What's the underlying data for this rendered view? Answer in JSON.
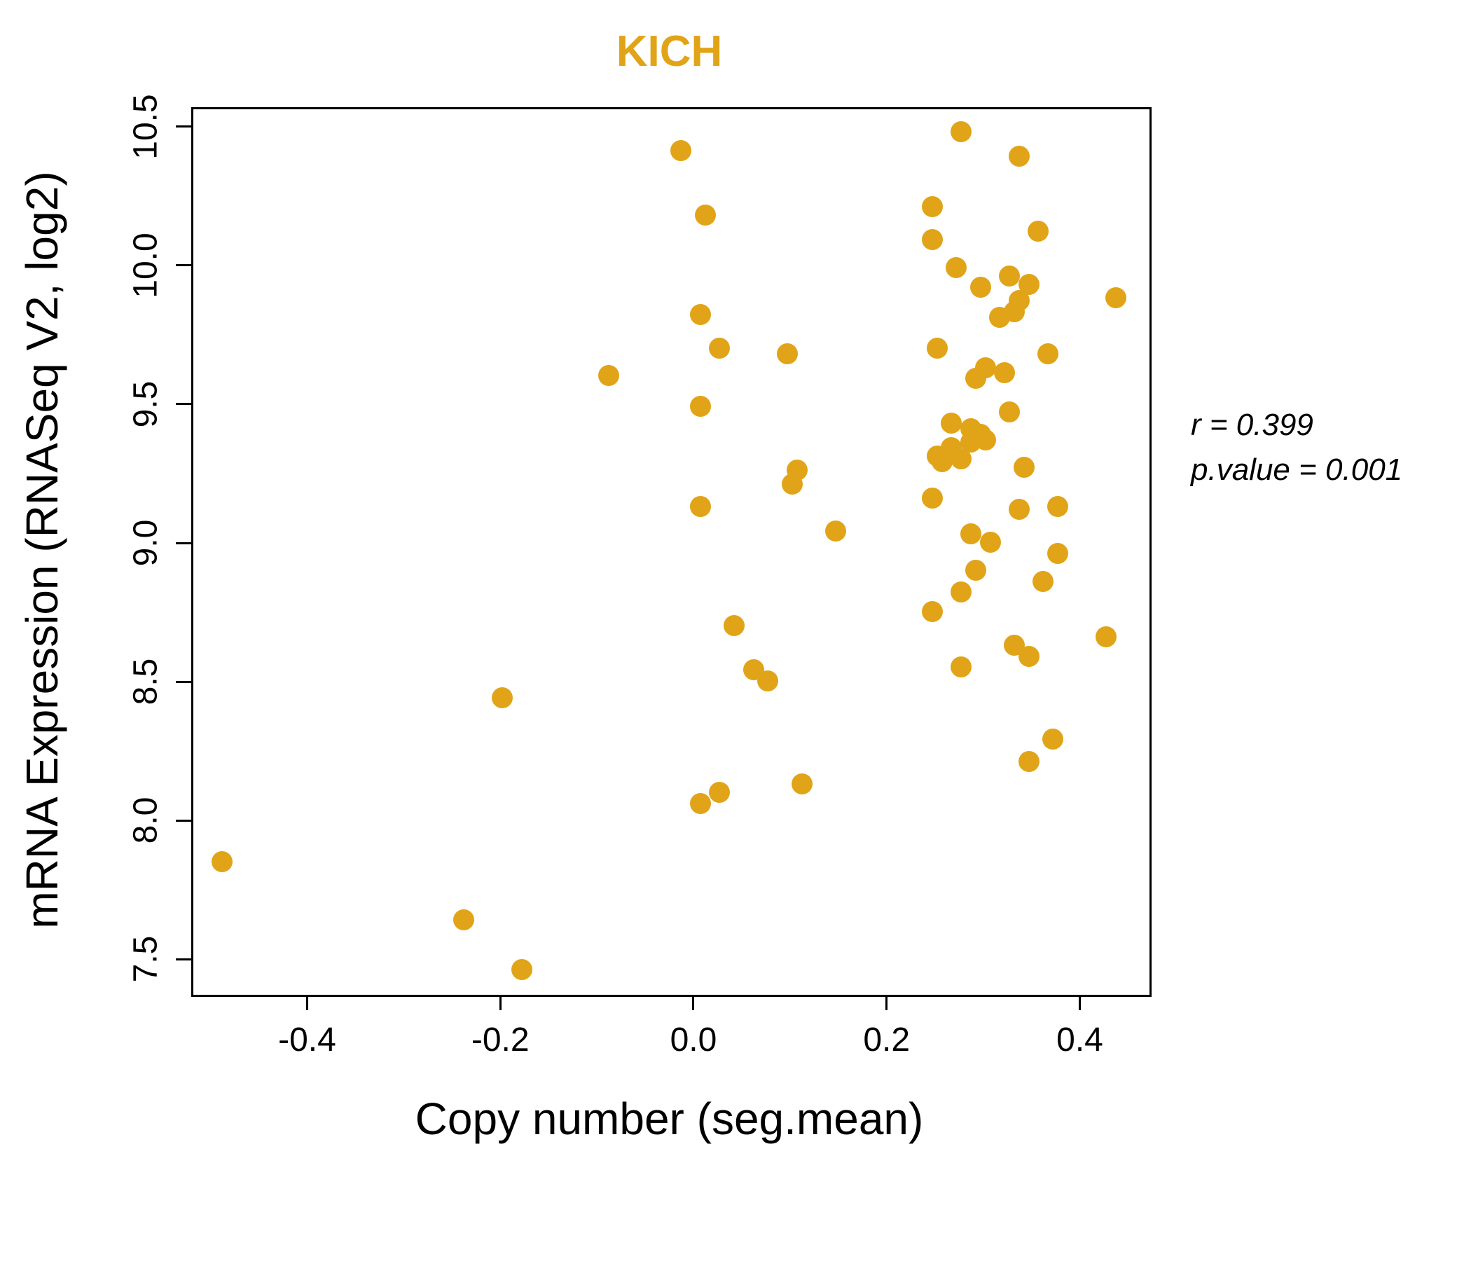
{
  "accent_color": "#E1A418",
  "title": "KICH",
  "annotation": {
    "line1": "r = 0.399",
    "line2": "p.value = 0.001"
  },
  "chart_data": {
    "type": "scatter",
    "title": "KICH",
    "xlabel": "Copy number (seg.mean)",
    "ylabel": "mRNA Expression (RNASeq V2, log2)",
    "xlim": [
      -0.52,
      0.47
    ],
    "ylim": [
      7.38,
      10.57
    ],
    "x_ticks": [
      -0.4,
      -0.2,
      0.0,
      0.2,
      0.4
    ],
    "y_ticks": [
      7.5,
      8.0,
      8.5,
      9.0,
      9.5,
      10.0,
      10.5
    ],
    "grid": false,
    "legend": "none",
    "point_color": "#E1A418",
    "r": 0.399,
    "p_value": 0.001,
    "points": [
      [
        -0.49,
        7.86
      ],
      [
        -0.24,
        7.65
      ],
      [
        -0.18,
        7.47
      ],
      [
        -0.2,
        8.45
      ],
      [
        -0.09,
        9.61
      ],
      [
        -0.015,
        10.42
      ],
      [
        0.01,
        10.19
      ],
      [
        0.005,
        9.83
      ],
      [
        0.025,
        9.71
      ],
      [
        0.005,
        9.5
      ],
      [
        0.005,
        9.14
      ],
      [
        0.095,
        9.69
      ],
      [
        0.105,
        9.27
      ],
      [
        0.1,
        9.22
      ],
      [
        0.145,
        9.05
      ],
      [
        0.04,
        8.71
      ],
      [
        0.06,
        8.55
      ],
      [
        0.075,
        8.51
      ],
      [
        0.005,
        8.07
      ],
      [
        0.025,
        8.11
      ],
      [
        0.11,
        8.14
      ],
      [
        0.275,
        10.49
      ],
      [
        0.335,
        10.4
      ],
      [
        0.245,
        10.22
      ],
      [
        0.245,
        10.1
      ],
      [
        0.355,
        10.13
      ],
      [
        0.27,
        10.0
      ],
      [
        0.325,
        9.97
      ],
      [
        0.295,
        9.93
      ],
      [
        0.345,
        9.94
      ],
      [
        0.335,
        9.88
      ],
      [
        0.33,
        9.84
      ],
      [
        0.315,
        9.82
      ],
      [
        0.435,
        9.89
      ],
      [
        0.25,
        9.71
      ],
      [
        0.365,
        9.69
      ],
      [
        0.3,
        9.64
      ],
      [
        0.29,
        9.6
      ],
      [
        0.32,
        9.62
      ],
      [
        0.325,
        9.48
      ],
      [
        0.265,
        9.44
      ],
      [
        0.285,
        9.42
      ],
      [
        0.295,
        9.4
      ],
      [
        0.285,
        9.37
      ],
      [
        0.3,
        9.38
      ],
      [
        0.265,
        9.35
      ],
      [
        0.25,
        9.32
      ],
      [
        0.255,
        9.3
      ],
      [
        0.275,
        9.31
      ],
      [
        0.34,
        9.28
      ],
      [
        0.245,
        9.17
      ],
      [
        0.335,
        9.13
      ],
      [
        0.375,
        9.14
      ],
      [
        0.285,
        9.04
      ],
      [
        0.305,
        9.01
      ],
      [
        0.375,
        8.97
      ],
      [
        0.29,
        8.91
      ],
      [
        0.36,
        8.87
      ],
      [
        0.275,
        8.83
      ],
      [
        0.245,
        8.76
      ],
      [
        0.33,
        8.64
      ],
      [
        0.345,
        8.6
      ],
      [
        0.275,
        8.56
      ],
      [
        0.425,
        8.67
      ],
      [
        0.37,
        8.3
      ],
      [
        0.345,
        8.22
      ]
    ]
  }
}
